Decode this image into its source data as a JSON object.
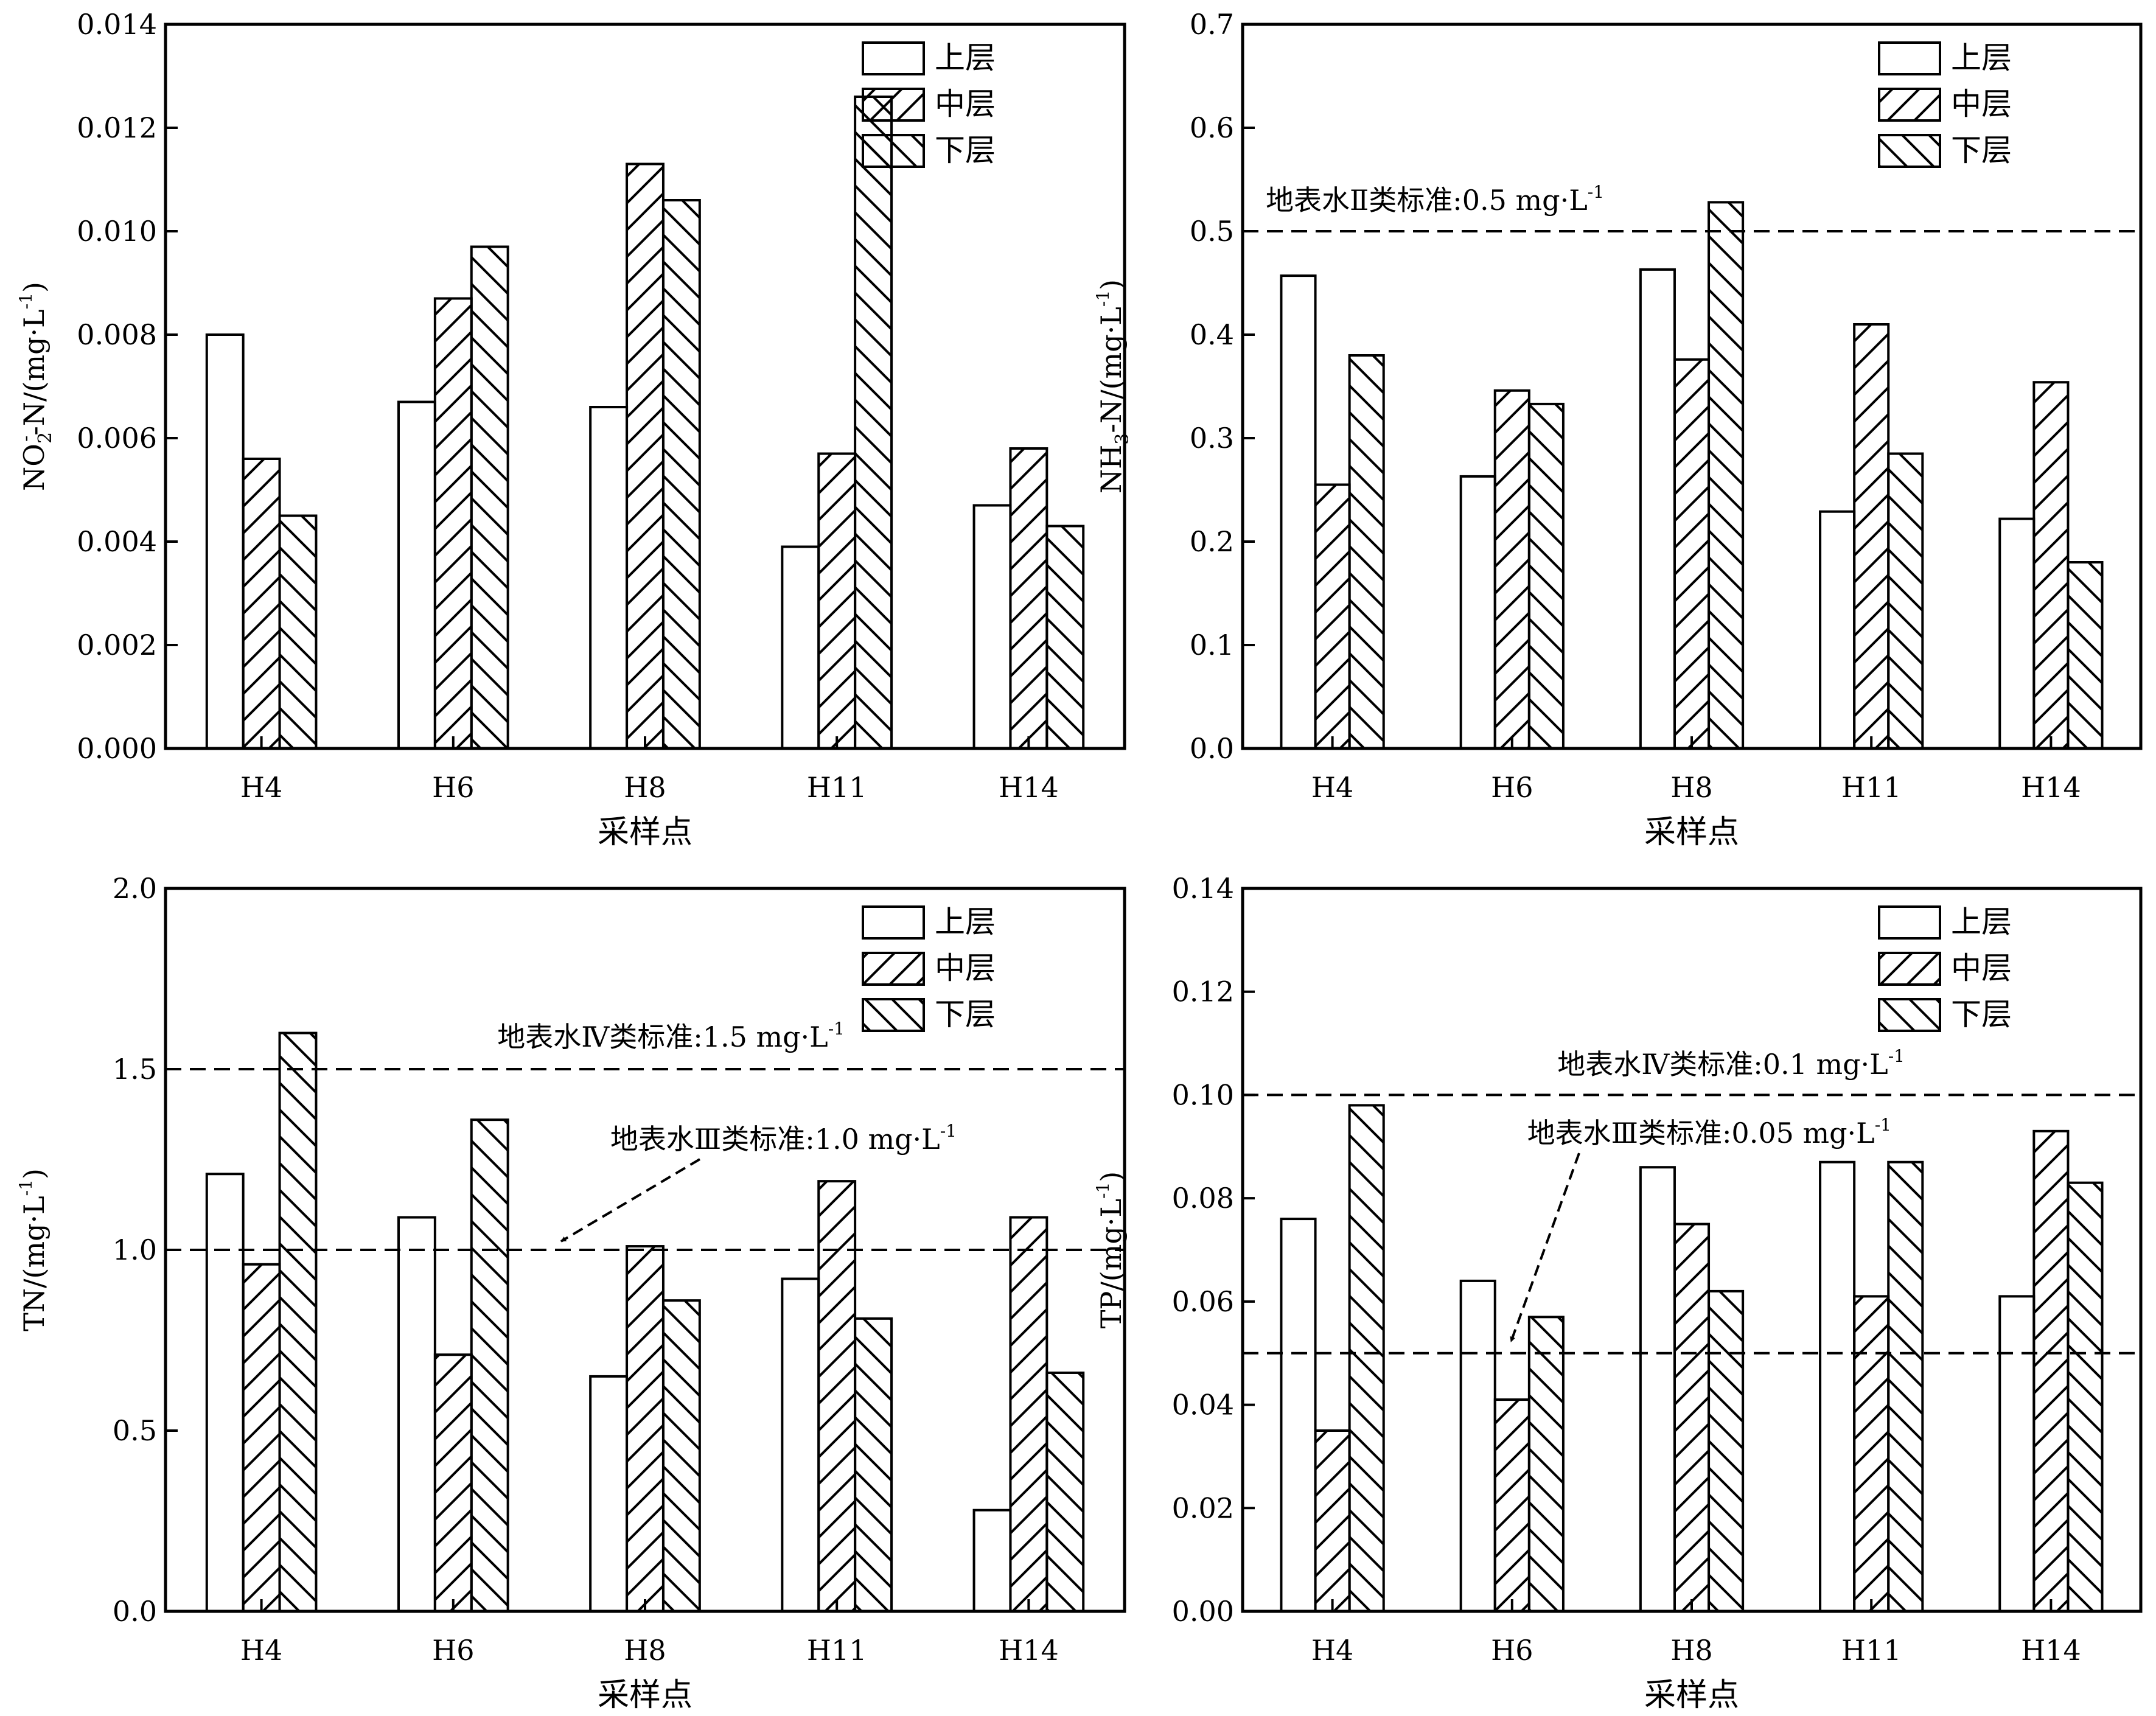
{
  "chart_data": [
    {
      "type": "bar",
      "title": "",
      "ylabel": {
        "main": "NO",
        "sub": "2",
        "sup": "-",
        "rest": "-N/(mg·L",
        "unit_sup": "-1",
        "close": ")"
      },
      "xlabel": "采样点",
      "categories": [
        "H4",
        "H6",
        "H8",
        "H11",
        "H14"
      ],
      "ylim": [
        0,
        0.014
      ],
      "yticks": [
        "0.000",
        "0.002",
        "0.004",
        "0.006",
        "0.008",
        "0.010",
        "0.012",
        "0.014"
      ],
      "series": [
        {
          "name": "上层",
          "values": [
            0.008,
            0.0067,
            0.0066,
            0.0039,
            0.0047
          ]
        },
        {
          "name": "中层",
          "values": [
            0.0056,
            0.0087,
            0.0113,
            0.0057,
            0.0058
          ]
        },
        {
          "name": "下层",
          "values": [
            0.0045,
            0.0097,
            0.0106,
            0.0126,
            0.0043
          ]
        }
      ],
      "reference_lines": [],
      "legend": "top-right",
      "grid": false
    },
    {
      "type": "bar",
      "title": "",
      "ylabel": {
        "main": "NH",
        "sub": "3",
        "sup": "",
        "rest": "-N/(mg·L",
        "unit_sup": "-1",
        "close": ")"
      },
      "xlabel": "采样点",
      "categories": [
        "H4",
        "H6",
        "H8",
        "H11",
        "H14"
      ],
      "ylim": [
        0,
        0.7
      ],
      "yticks": [
        "0.0",
        "0.1",
        "0.2",
        "0.3",
        "0.4",
        "0.5",
        "0.6",
        "0.7"
      ],
      "series": [
        {
          "name": "上层",
          "values": [
            0.457,
            0.263,
            0.463,
            0.229,
            0.222
          ]
        },
        {
          "name": "中层",
          "values": [
            0.255,
            0.346,
            0.376,
            0.41,
            0.354
          ]
        },
        {
          "name": "下层",
          "values": [
            0.38,
            0.333,
            0.528,
            0.285,
            0.18
          ]
        }
      ],
      "reference_lines": [
        {
          "value": 0.5,
          "label": "地表水Ⅱ类标准:0.5 mg·L",
          "label_sup": "-1"
        }
      ],
      "legend": "top-right",
      "grid": false
    },
    {
      "type": "bar",
      "title": "",
      "ylabel": {
        "main": "TN/(mg·L",
        "sub": "",
        "sup": "",
        "rest": "",
        "unit_sup": "-1",
        "close": ")"
      },
      "xlabel": "采样点",
      "categories": [
        "H4",
        "H6",
        "H8",
        "H11",
        "H14"
      ],
      "ylim": [
        0,
        2.0
      ],
      "yticks": [
        "0.0",
        "0.5",
        "1.0",
        "1.5",
        "2.0"
      ],
      "series": [
        {
          "name": "上层",
          "values": [
            1.21,
            1.09,
            0.65,
            0.92,
            0.28
          ]
        },
        {
          "name": "中层",
          "values": [
            0.96,
            0.71,
            1.01,
            1.19,
            1.09
          ]
        },
        {
          "name": "下层",
          "values": [
            1.6,
            1.36,
            0.86,
            0.81,
            0.66
          ]
        }
      ],
      "reference_lines": [
        {
          "value": 1.5,
          "label": "地表水Ⅳ类标准:1.5 mg·L",
          "label_sup": "-1"
        },
        {
          "value": 1.0,
          "label": "地表水Ⅲ类标准:1.0 mg·L",
          "label_sup": "-1"
        }
      ],
      "legend": "top-right",
      "grid": false
    },
    {
      "type": "bar",
      "title": "",
      "ylabel": {
        "main": "TP/(mg·L",
        "sub": "",
        "sup": "",
        "rest": "",
        "unit_sup": "-1",
        "close": ")"
      },
      "xlabel": "采样点",
      "categories": [
        "H4",
        "H6",
        "H8",
        "H11",
        "H14"
      ],
      "ylim": [
        0,
        0.14
      ],
      "yticks": [
        "0.00",
        "0.02",
        "0.04",
        "0.06",
        "0.08",
        "0.10",
        "0.12",
        "0.14"
      ],
      "series": [
        {
          "name": "上层",
          "values": [
            0.076,
            0.064,
            0.086,
            0.087,
            0.061
          ]
        },
        {
          "name": "中层",
          "values": [
            0.035,
            0.041,
            0.075,
            0.061,
            0.093
          ]
        },
        {
          "name": "下层",
          "values": [
            0.098,
            0.057,
            0.062,
            0.087,
            0.083
          ]
        }
      ],
      "reference_lines": [
        {
          "value": 0.1,
          "label": "地表水Ⅳ类标准:0.1 mg·L",
          "label_sup": "-1"
        },
        {
          "value": 0.05,
          "label": "地表水Ⅲ类标准:0.05 mg·L",
          "label_sup": "-1"
        }
      ],
      "legend": "top-right",
      "grid": false
    }
  ]
}
